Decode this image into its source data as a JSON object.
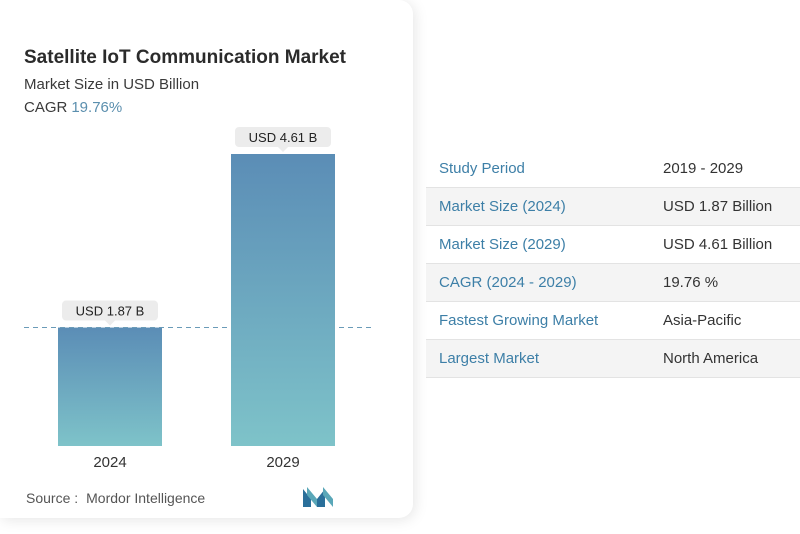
{
  "chart_data": {
    "type": "bar",
    "title": "Satellite IoT Communication Market",
    "subtitle": "Market Size in USD Billion",
    "cagr_label": "CAGR",
    "cagr_value": "19.76%",
    "categories": [
      "2024",
      "2029"
    ],
    "values": [
      1.87,
      4.61
    ],
    "data_labels": [
      "USD 1.87 B",
      "USD 4.61 B"
    ],
    "ylim": [
      0,
      4.61
    ],
    "colors": {
      "bar_top": "#5b8db6",
      "bar_bottom": "#7ec3c9",
      "dashed_line": "#6a9bb8",
      "label_bg": "#ececec"
    }
  },
  "source": {
    "label": "Source :",
    "name": "Mordor Intelligence"
  },
  "table": [
    {
      "key": "Study Period",
      "value": "2019 - 2029"
    },
    {
      "key": "Market Size (2024)",
      "value": "USD 1.87 Billion"
    },
    {
      "key": "Market Size (2029)",
      "value": "USD 4.61 Billion"
    },
    {
      "key": "CAGR (2024 - 2029)",
      "value": "19.76 %"
    },
    {
      "key": "Fastest Growing Market",
      "value": "Asia-Pacific"
    },
    {
      "key": "Largest Market",
      "value": "North America"
    }
  ]
}
